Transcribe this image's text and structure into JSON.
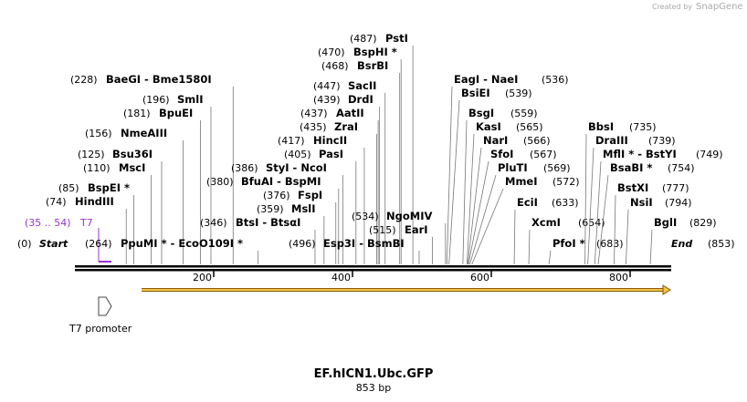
{
  "watermark": {
    "prefix": "Created by",
    "brand": "SnapGene"
  },
  "sites": {
    "left": [
      {
        "site": "(487)",
        "name": "PstI"
      },
      {
        "site": "(470)",
        "name": "BspHI *"
      },
      {
        "site": "(468)",
        "name": "BsrBI"
      },
      {
        "site": "(228)",
        "name": "BaeGI - Bme1580I"
      },
      {
        "site": "(447)",
        "name": "SacII"
      },
      {
        "site": "(196)",
        "name": "SmlI"
      },
      {
        "site": "(439)",
        "name": "DrdI"
      },
      {
        "site": "(181)",
        "name": "BpuEI"
      },
      {
        "site": "(437)",
        "name": "AatII"
      },
      {
        "site": "(435)",
        "name": "ZraI"
      },
      {
        "site": "(156)",
        "name": "NmeAIII"
      },
      {
        "site": "(417)",
        "name": "HincII"
      },
      {
        "site": "(125)",
        "name": "Bsu36I"
      },
      {
        "site": "(405)",
        "name": "PasI"
      },
      {
        "site": "(110)",
        "name": "MscI"
      },
      {
        "site": "(386)",
        "name": "StyI - NcoI"
      },
      {
        "site": "(380)",
        "name": "BfuAI - BspMI"
      },
      {
        "site": "(85)",
        "name": "BspEI *"
      },
      {
        "site": "(376)",
        "name": "FspI"
      },
      {
        "site": "(74)",
        "name": "HindIII"
      },
      {
        "site": "(359)",
        "name": "MslI"
      },
      {
        "site": "(534)",
        "name": "NgoMIV"
      },
      {
        "site": "(346)",
        "name": "BtsI - BtsαI"
      },
      {
        "site": "(515)",
        "name": "EarI"
      },
      {
        "site": "(264)",
        "name": "PpuMI * - EcoO109I *"
      },
      {
        "site": "(496)",
        "name": "Esp3I - BsmBI"
      }
    ],
    "right": [
      {
        "name": "EagI - NaeI",
        "site": "(536)"
      },
      {
        "name": "BsiEI",
        "site": "(539)"
      },
      {
        "name": "BsgI",
        "site": "(559)"
      },
      {
        "name": "KasI",
        "site": "(565)"
      },
      {
        "name": "NarI",
        "site": "(566)"
      },
      {
        "name": "SfoI",
        "site": "(567)"
      },
      {
        "name": "PluTI",
        "site": "(569)"
      },
      {
        "name": "MmeI",
        "site": "(572)"
      },
      {
        "name": "EciI",
        "site": "(633)"
      },
      {
        "name": "XcmI",
        "site": "(654)"
      },
      {
        "name": "PfoI *",
        "site": "(683)"
      },
      {
        "name": "BbsI",
        "site": "(735)"
      },
      {
        "name": "DraIII",
        "site": "(739)"
      },
      {
        "name": "MflI * - BstYI",
        "site": "(749)"
      },
      {
        "name": "BsaBI *",
        "site": "(754)"
      },
      {
        "name": "BstXI",
        "site": "(777)"
      },
      {
        "name": "NsiI",
        "site": "(794)"
      },
      {
        "name": "BglI",
        "site": "(829)"
      }
    ],
    "start": {
      "site": "(0)",
      "name": "Start"
    },
    "end": {
      "name": "End",
      "site": "(853)"
    }
  },
  "primer": {
    "site": "(35 .. 54)",
    "name": "T7"
  },
  "ruler": {
    "ticks": [
      "200",
      "400",
      "600",
      "800"
    ]
  },
  "feature_label": "T7 promoter",
  "title": "EF.hICN1.Ubc.GFP",
  "length": "853 bp"
}
